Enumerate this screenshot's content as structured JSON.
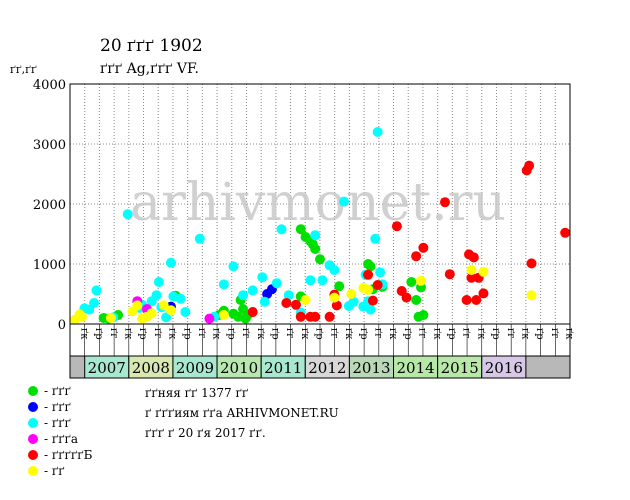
{
  "title": "20 ґґґ 1902",
  "subtitle": "ґґґ Ag,ґґґ VF.",
  "y_unit": "ґґ,ґґ",
  "watermark": "arhivmonet.ru",
  "note_lines": [
    "ґґняя ґґ 1377 ґґ",
    "ґ ґґґиям ґґа ARHIVMONET.RU",
    "ґґґ ґ 20 ґя 2017 ґґ."
  ],
  "legend": [
    {
      "label": "- ґґґ",
      "color": "#00e000"
    },
    {
      "label": "- ґґґ",
      "color": "#0000ff"
    },
    {
      "label": "- ґґґ",
      "color": "#00ffff"
    },
    {
      "label": "- ґґґа",
      "color": "#ff00ff"
    },
    {
      "label": "- ґґґґґБ",
      "color": "#ff0000"
    },
    {
      "label": "- ґґ",
      "color": "#ffff00"
    }
  ],
  "chart_data": {
    "type": "scatter",
    "title": "20 ґґґ 1902",
    "subtitle": "ґґґ Ag,ґґґ VF.",
    "ylabel": "ґґ,ґґ",
    "ylim": [
      0,
      4000
    ],
    "yticks": [
      0,
      1000,
      2000,
      3000,
      4000
    ],
    "grid": true,
    "x_range": [
      2006.5,
      2016.9
    ],
    "quarter_labels": [
      "ґк",
      "ґр",
      "ґг",
      "ґк",
      "ґр",
      "ґг",
      "ґк",
      "ґр",
      "ґг",
      "ґк",
      "ґр",
      "ґг",
      "ґк",
      "ґр",
      "ґг",
      "ґк",
      "ґр",
      "ґг",
      "ґк",
      "ґр",
      "ґг",
      "ґк",
      "ґр",
      "ґг",
      "ґк",
      "ґр",
      "ґг",
      "ґк",
      "ґр",
      "ґг",
      "ґк",
      "ґр",
      "ґг",
      "ґк"
    ],
    "years": [
      "2007",
      "2008",
      "2009",
      "2010",
      "2011",
      "2012",
      "2013",
      "2014",
      "2015",
      "2016"
    ],
    "year_colors": [
      "#a8e8d0",
      "#d8e8b0",
      "#a8e8d0",
      "#b8e8b0",
      "#a8e8d0",
      "#d8d8d8",
      "#b8d8b8",
      "#b8e8a8",
      "#b8e8a8",
      "#d8c8e8"
    ],
    "series": [
      {
        "name": "- ґґґ",
        "color": "#00e000",
        "points": [
          [
            2007.2,
            100
          ],
          [
            2007.3,
            90
          ],
          [
            2007.5,
            150
          ],
          [
            2008.7,
            470
          ],
          [
            2009.6,
            150
          ],
          [
            2009.7,
            220
          ],
          [
            2009.9,
            170
          ],
          [
            2010.0,
            120
          ],
          [
            2010.05,
            400
          ],
          [
            2010.1,
            250
          ],
          [
            2010.15,
            90
          ],
          [
            2010.2,
            150
          ],
          [
            2011.3,
            1580
          ],
          [
            2011.4,
            1450
          ],
          [
            2011.5,
            1380
          ],
          [
            2011.55,
            1330
          ],
          [
            2011.6,
            1250
          ],
          [
            2011.7,
            1080
          ],
          [
            2011.3,
            460
          ],
          [
            2012.1,
            630
          ],
          [
            2012.7,
            1000
          ],
          [
            2012.75,
            960
          ],
          [
            2012.8,
            580
          ],
          [
            2013.0,
            620
          ],
          [
            2013.6,
            700
          ],
          [
            2013.7,
            400
          ],
          [
            2013.75,
            120
          ],
          [
            2013.8,
            610
          ],
          [
            2013.85,
            150
          ]
        ]
      },
      {
        "name": "- ґґґ",
        "color": "#0000ff",
        "points": [
          [
            2008.6,
            290
          ],
          [
            2010.6,
            500
          ],
          [
            2010.7,
            580
          ]
        ]
      },
      {
        "name": "- ґґґ",
        "color": "#00ffff",
        "points": [
          [
            2006.8,
            260
          ],
          [
            2006.9,
            240
          ],
          [
            2007.0,
            350
          ],
          [
            2007.05,
            560
          ],
          [
            2007.4,
            110
          ],
          [
            2007.7,
            1830
          ],
          [
            2007.95,
            270
          ],
          [
            2008.0,
            320
          ],
          [
            2008.2,
            380
          ],
          [
            2008.3,
            480
          ],
          [
            2008.35,
            700
          ],
          [
            2008.4,
            280
          ],
          [
            2008.5,
            110
          ],
          [
            2008.6,
            1020
          ],
          [
            2008.65,
            460
          ],
          [
            2008.8,
            420
          ],
          [
            2008.9,
            200
          ],
          [
            2009.2,
            1420
          ],
          [
            2009.5,
            120
          ],
          [
            2009.7,
            660
          ],
          [
            2009.9,
            960
          ],
          [
            2010.1,
            480
          ],
          [
            2010.3,
            560
          ],
          [
            2010.5,
            780
          ],
          [
            2010.55,
            370
          ],
          [
            2010.8,
            680
          ],
          [
            2010.9,
            1580
          ],
          [
            2011.05,
            480
          ],
          [
            2011.2,
            320
          ],
          [
            2011.3,
            190
          ],
          [
            2011.5,
            730
          ],
          [
            2011.6,
            1480
          ],
          [
            2011.75,
            730
          ],
          [
            2011.9,
            980
          ],
          [
            2012.0,
            900
          ],
          [
            2012.2,
            2040
          ],
          [
            2012.3,
            300
          ],
          [
            2012.4,
            370
          ],
          [
            2012.6,
            290
          ],
          [
            2012.65,
            820
          ],
          [
            2012.7,
            380
          ],
          [
            2012.75,
            240
          ],
          [
            2012.85,
            1420
          ],
          [
            2012.9,
            3200
          ],
          [
            2012.95,
            860
          ],
          [
            2013.0,
            660
          ]
        ]
      },
      {
        "name": "- ґґґа",
        "color": "#ff00ff",
        "points": [
          [
            2007.9,
            380
          ],
          [
            2008.1,
            250
          ],
          [
            2009.4,
            90
          ]
        ]
      },
      {
        "name": "- ґґґґґБ",
        "color": "#ff0000",
        "points": [
          [
            2010.3,
            200
          ],
          [
            2011.0,
            350
          ],
          [
            2011.2,
            320
          ],
          [
            2011.3,
            120
          ],
          [
            2011.5,
            120
          ],
          [
            2011.6,
            120
          ],
          [
            2011.9,
            120
          ],
          [
            2012.0,
            490
          ],
          [
            2012.05,
            310
          ],
          [
            2012.7,
            820
          ],
          [
            2012.8,
            390
          ],
          [
            2012.9,
            650
          ],
          [
            2013.3,
            1630
          ],
          [
            2013.4,
            550
          ],
          [
            2013.5,
            440
          ],
          [
            2013.7,
            1130
          ],
          [
            2013.85,
            1270
          ],
          [
            2014.3,
            2030
          ],
          [
            2014.4,
            830
          ],
          [
            2014.75,
            400
          ],
          [
            2014.8,
            1160
          ],
          [
            2014.85,
            770
          ],
          [
            2014.9,
            1110
          ],
          [
            2014.95,
            400
          ],
          [
            2015.0,
            770
          ],
          [
            2015.1,
            510
          ],
          [
            2016.0,
            2560
          ],
          [
            2016.05,
            2640
          ],
          [
            2016.1,
            1010
          ],
          [
            2016.8,
            1520
          ]
        ]
      },
      {
        "name": "- ґґ",
        "color": "#ffff00",
        "points": [
          [
            2006.6,
            70
          ],
          [
            2006.7,
            160
          ],
          [
            2006.75,
            120
          ],
          [
            2007.35,
            100
          ],
          [
            2007.8,
            210
          ],
          [
            2007.9,
            310
          ],
          [
            2008.0,
            90
          ],
          [
            2008.1,
            120
          ],
          [
            2008.2,
            180
          ],
          [
            2008.45,
            310
          ],
          [
            2008.6,
            230
          ],
          [
            2009.7,
            150
          ],
          [
            2011.4,
            400
          ],
          [
            2012.0,
            440
          ],
          [
            2012.35,
            500
          ],
          [
            2012.6,
            600
          ],
          [
            2012.7,
            570
          ],
          [
            2013.8,
            720
          ],
          [
            2014.85,
            900
          ],
          [
            2015.1,
            870
          ],
          [
            2016.1,
            480
          ]
        ]
      }
    ]
  }
}
